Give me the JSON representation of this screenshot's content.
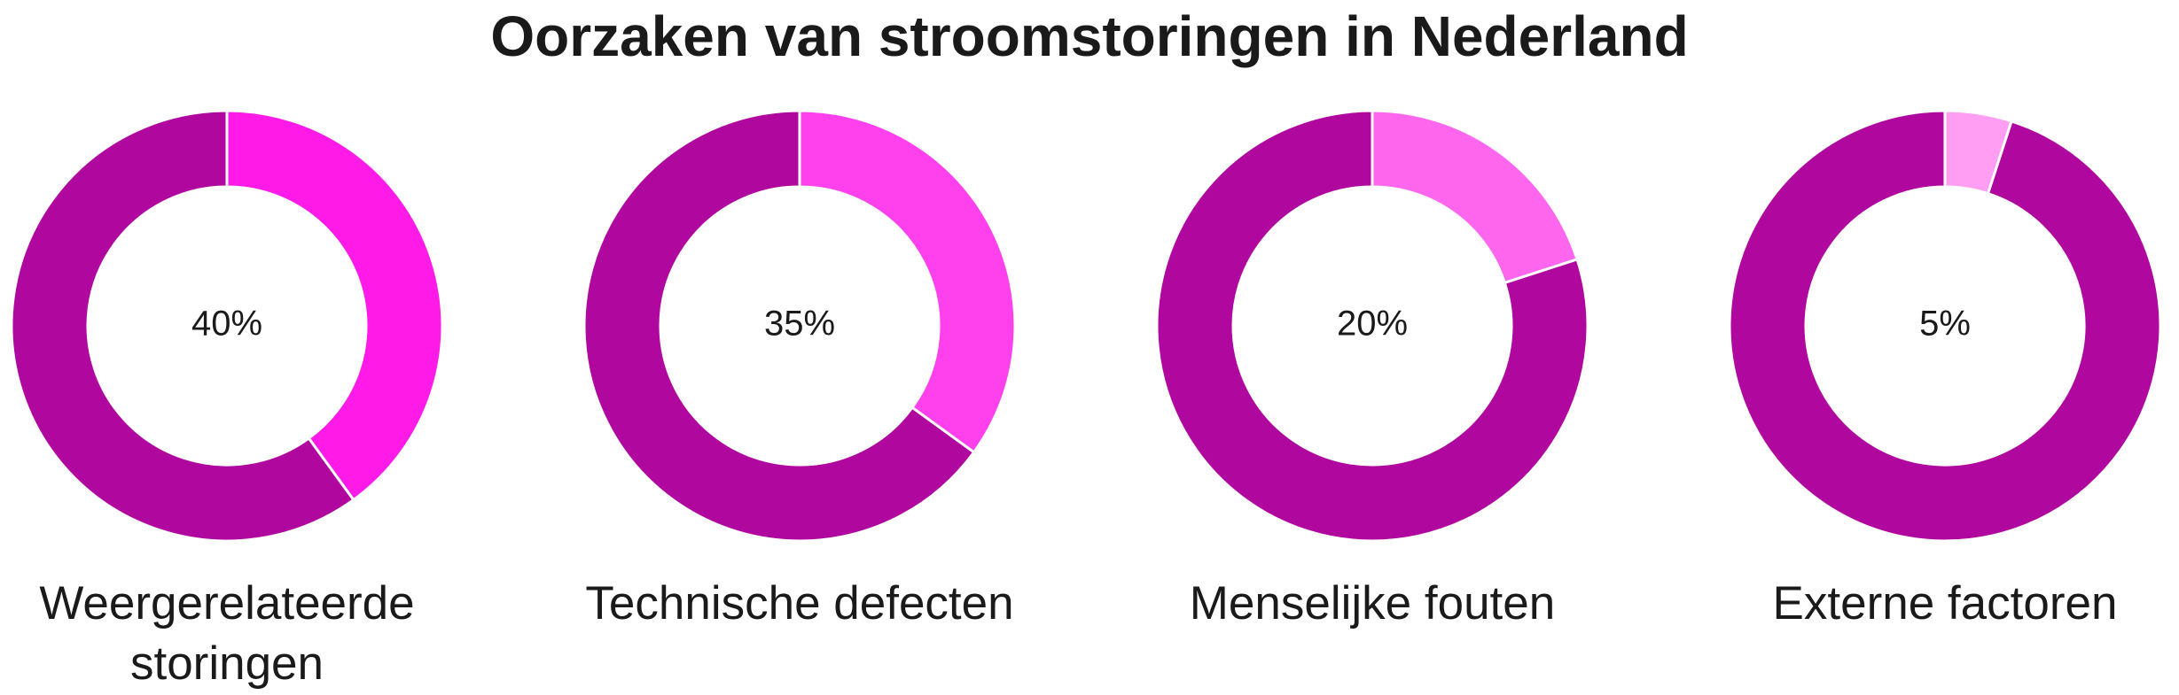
{
  "title": "Oorzaken van stroomstoringen in Nederland",
  "chart_data": [
    {
      "type": "donut",
      "label": "Weergerelateerde storingen",
      "values": [
        40,
        60
      ],
      "value_labels": [
        "40%",
        null
      ],
      "colors": [
        "#ff1ae8",
        "#b0089e"
      ]
    },
    {
      "type": "donut",
      "label": "Technische defecten",
      "values": [
        35,
        65
      ],
      "value_labels": [
        "35%",
        null
      ],
      "colors": [
        "#ff40ec",
        "#b0089e"
      ]
    },
    {
      "type": "donut",
      "label": "Menselijke fouten",
      "values": [
        20,
        80
      ],
      "value_labels": [
        "20%",
        null
      ],
      "colors": [
        "#ff66ee",
        "#b0089e"
      ]
    },
    {
      "type": "donut",
      "label": "Externe factoren",
      "values": [
        5,
        95
      ],
      "value_labels": [
        "5%",
        null
      ],
      "colors": [
        "#ff9ef2",
        "#b0089e"
      ]
    }
  ]
}
